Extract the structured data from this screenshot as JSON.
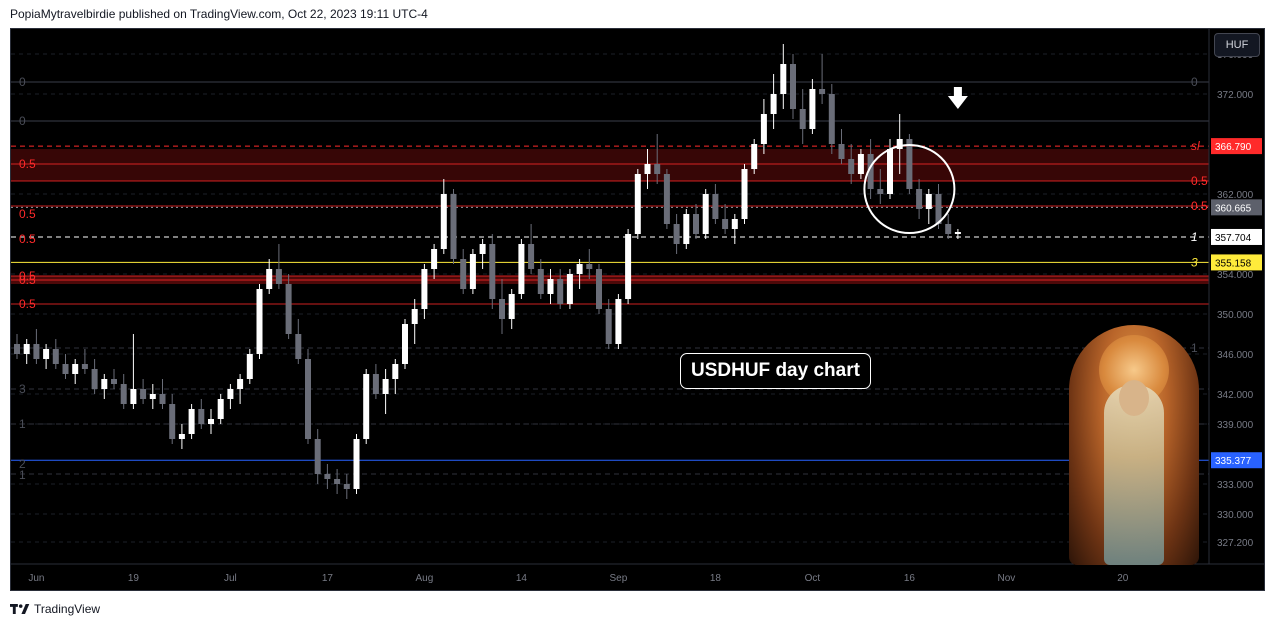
{
  "header": {
    "published_text": "PopiaMytravelbirdie published on TradingView.com, Oct 22, 2023 19:11 UTC-4"
  },
  "toolbar": {
    "currency_label": "HUF"
  },
  "annotation": {
    "text": "USDHUF day chart"
  },
  "footer": {
    "brand": "TradingView"
  },
  "colors": {
    "up": "#ffffff",
    "down": "#6a6d78",
    "red_level": "#ff2a2a",
    "yellow_level": "#ffeb3b",
    "blue_level": "#2962ff",
    "white_level": "#ffffff"
  },
  "chart_data": {
    "type": "candlestick",
    "symbol": "USDHUF",
    "timeframe": "1D",
    "ylim": [
      325.0,
      378.5
    ],
    "y_ticks": [
      "376.000",
      "372.000",
      "362.000",
      "354.000",
      "350.000",
      "346.000",
      "342.000",
      "339.000",
      "333.000",
      "330.000",
      "327.200"
    ],
    "x_ticks": [
      {
        "label": "Jun",
        "index": 2
      },
      {
        "label": "19",
        "index": 12
      },
      {
        "label": "Jul",
        "index": 22
      },
      {
        "label": "17",
        "index": 32
      },
      {
        "label": "Aug",
        "index": 42
      },
      {
        "label": "14",
        "index": 52
      },
      {
        "label": "Sep",
        "index": 62
      },
      {
        "label": "18",
        "index": 72
      },
      {
        "label": "Oct",
        "index": 82
      },
      {
        "label": "16",
        "index": 92
      },
      {
        "label": "Nov",
        "index": 102
      },
      {
        "label": "20",
        "index": 114
      }
    ],
    "candles": [
      [
        347.0,
        348.0,
        345.5,
        346.0
      ],
      [
        346.0,
        347.5,
        345.0,
        347.0
      ],
      [
        347.0,
        348.5,
        345.0,
        345.5
      ],
      [
        345.5,
        347.0,
        344.5,
        346.5
      ],
      [
        346.5,
        347.5,
        344.5,
        345.0
      ],
      [
        345.0,
        346.0,
        343.5,
        344.0
      ],
      [
        344.0,
        345.5,
        343.0,
        345.0
      ],
      [
        345.0,
        346.5,
        344.0,
        344.5
      ],
      [
        344.5,
        345.5,
        342.0,
        342.5
      ],
      [
        342.5,
        344.0,
        341.5,
        343.5
      ],
      [
        343.5,
        344.5,
        342.5,
        343.0
      ],
      [
        343.0,
        344.0,
        340.5,
        341.0
      ],
      [
        341.0,
        348.0,
        340.5,
        342.5
      ],
      [
        342.5,
        343.5,
        341.0,
        341.5
      ],
      [
        341.5,
        343.0,
        340.5,
        342.0
      ],
      [
        342.0,
        343.5,
        340.5,
        341.0
      ],
      [
        341.0,
        342.0,
        337.0,
        337.5
      ],
      [
        337.5,
        339.0,
        336.5,
        338.0
      ],
      [
        338.0,
        341.0,
        337.5,
        340.5
      ],
      [
        340.5,
        341.5,
        338.5,
        339.0
      ],
      [
        339.0,
        340.5,
        338.0,
        339.5
      ],
      [
        339.5,
        342.0,
        339.0,
        341.5
      ],
      [
        341.5,
        343.0,
        340.5,
        342.5
      ],
      [
        342.5,
        344.0,
        341.0,
        343.5
      ],
      [
        343.5,
        346.5,
        343.0,
        346.0
      ],
      [
        346.0,
        353.0,
        345.5,
        352.5
      ],
      [
        352.5,
        355.5,
        352.0,
        354.5
      ],
      [
        354.5,
        357.0,
        352.5,
        353.0
      ],
      [
        353.0,
        354.0,
        347.5,
        348.0
      ],
      [
        348.0,
        349.5,
        345.0,
        345.5
      ],
      [
        345.5,
        346.5,
        337.0,
        337.5
      ],
      [
        337.5,
        338.5,
        333.0,
        334.0
      ],
      [
        334.0,
        335.0,
        332.5,
        333.5
      ],
      [
        333.5,
        334.5,
        332.0,
        333.0
      ],
      [
        333.0,
        334.0,
        331.5,
        332.5
      ],
      [
        332.5,
        338.0,
        332.0,
        337.5
      ],
      [
        337.5,
        344.5,
        337.0,
        344.0
      ],
      [
        344.0,
        345.0,
        341.5,
        342.0
      ],
      [
        342.0,
        344.5,
        340.0,
        343.5
      ],
      [
        343.5,
        345.5,
        342.0,
        345.0
      ],
      [
        345.0,
        349.5,
        344.5,
        349.0
      ],
      [
        349.0,
        351.5,
        347.0,
        350.5
      ],
      [
        350.5,
        355.0,
        349.5,
        354.5
      ],
      [
        354.5,
        357.0,
        353.5,
        356.5
      ],
      [
        356.5,
        363.5,
        356.0,
        362.0
      ],
      [
        362.0,
        362.5,
        355.0,
        355.5
      ],
      [
        355.5,
        356.5,
        352.0,
        352.5
      ],
      [
        352.5,
        356.5,
        352.0,
        356.0
      ],
      [
        356.0,
        357.5,
        354.5,
        357.0
      ],
      [
        357.0,
        358.0,
        350.5,
        351.5
      ],
      [
        351.5,
        353.5,
        348.0,
        349.5
      ],
      [
        349.5,
        352.5,
        348.5,
        352.0
      ],
      [
        352.0,
        357.5,
        351.5,
        357.0
      ],
      [
        357.0,
        359.0,
        354.0,
        354.5
      ],
      [
        354.5,
        355.5,
        351.5,
        352.0
      ],
      [
        352.0,
        354.5,
        351.0,
        353.5
      ],
      [
        353.5,
        354.5,
        350.5,
        351.0
      ],
      [
        351.0,
        354.5,
        350.5,
        354.0
      ],
      [
        354.0,
        355.5,
        352.5,
        355.0
      ],
      [
        355.0,
        356.5,
        353.5,
        354.5
      ],
      [
        354.5,
        355.0,
        350.0,
        350.5
      ],
      [
        350.5,
        351.5,
        346.5,
        347.0
      ],
      [
        347.0,
        352.0,
        346.5,
        351.5
      ],
      [
        351.5,
        358.5,
        351.0,
        358.0
      ],
      [
        358.0,
        364.5,
        357.5,
        364.0
      ],
      [
        364.0,
        366.5,
        362.5,
        365.0
      ],
      [
        365.0,
        368.0,
        363.0,
        364.0
      ],
      [
        364.0,
        364.5,
        358.5,
        359.0
      ],
      [
        359.0,
        360.0,
        356.0,
        357.0
      ],
      [
        357.0,
        360.5,
        356.5,
        360.0
      ],
      [
        360.0,
        361.0,
        357.5,
        358.0
      ],
      [
        358.0,
        362.5,
        357.5,
        362.0
      ],
      [
        362.0,
        363.0,
        359.0,
        359.5
      ],
      [
        359.5,
        361.0,
        358.0,
        358.5
      ],
      [
        358.5,
        360.0,
        357.0,
        359.5
      ],
      [
        359.5,
        365.0,
        359.0,
        364.5
      ],
      [
        364.5,
        367.5,
        364.0,
        367.0
      ],
      [
        367.0,
        371.5,
        366.0,
        370.0
      ],
      [
        370.0,
        374.0,
        368.5,
        372.0
      ],
      [
        372.0,
        377.0,
        370.5,
        375.0
      ],
      [
        375.0,
        376.0,
        369.5,
        370.5
      ],
      [
        370.5,
        372.5,
        367.0,
        368.5
      ],
      [
        368.5,
        373.5,
        368.0,
        372.5
      ],
      [
        372.5,
        376.0,
        371.0,
        372.0
      ],
      [
        372.0,
        373.0,
        366.0,
        367.0
      ],
      [
        367.0,
        368.5,
        365.0,
        365.5
      ],
      [
        365.5,
        367.0,
        363.0,
        364.0
      ],
      [
        364.0,
        366.5,
        363.5,
        366.0
      ],
      [
        366.0,
        367.5,
        361.5,
        362.5
      ],
      [
        362.5,
        364.5,
        361.0,
        362.0
      ],
      [
        362.0,
        367.5,
        361.5,
        366.5
      ],
      [
        366.5,
        370.0,
        364.0,
        367.5
      ],
      [
        367.5,
        368.0,
        362.0,
        362.5
      ],
      [
        362.5,
        363.5,
        359.5,
        360.5
      ],
      [
        360.5,
        362.5,
        359.0,
        362.0
      ],
      [
        362.0,
        363.0,
        358.5,
        359.0
      ],
      [
        359.0,
        360.0,
        357.5,
        358.0
      ],
      [
        358.0,
        358.5,
        357.5,
        358.2
      ]
    ],
    "price_levels": [
      {
        "price": 366.79,
        "color": "red",
        "style": "dashed",
        "label": "sl",
        "tag": "366.790"
      },
      {
        "price": 360.665,
        "color": "gray",
        "style": "dotted",
        "tag": "360.665"
      },
      {
        "price": 357.704,
        "color": "white",
        "style": "dashed",
        "label": "1",
        "tag": "357.704"
      },
      {
        "price": 355.158,
        "color": "yellow",
        "style": "solid",
        "label": "3",
        "tag": "355.158"
      },
      {
        "price": 335.377,
        "color": "blue",
        "style": "solid",
        "label": "3",
        "tag": "335.377"
      }
    ],
    "fib_labels": [
      {
        "price": 373.2,
        "label": "0",
        "side": "left"
      },
      {
        "price": 369.3,
        "label": "0",
        "side": "left"
      },
      {
        "price": 365.0,
        "label": "0.5",
        "side": "left"
      },
      {
        "price": 360.0,
        "label": "0.5",
        "side": "left"
      },
      {
        "price": 357.5,
        "label": "0.5",
        "side": "left"
      },
      {
        "price": 353.8,
        "label": "0.5",
        "side": "left"
      },
      {
        "price": 353.4,
        "label": "0.5",
        "side": "left"
      },
      {
        "price": 351.0,
        "label": "0.5",
        "side": "left"
      },
      {
        "price": 342.5,
        "label": "3",
        "side": "left"
      },
      {
        "price": 339.0,
        "label": "1",
        "side": "left"
      },
      {
        "price": 335.0,
        "label": "2",
        "side": "left"
      },
      {
        "price": 333.9,
        "label": "1",
        "side": "left"
      },
      {
        "price": 373.2,
        "label": "0",
        "side": "right"
      },
      {
        "price": 363.3,
        "label": "0.5",
        "side": "right"
      },
      {
        "price": 360.8,
        "label": "0.5",
        "side": "right"
      },
      {
        "price": 346.6,
        "label": "1",
        "side": "right"
      }
    ]
  }
}
